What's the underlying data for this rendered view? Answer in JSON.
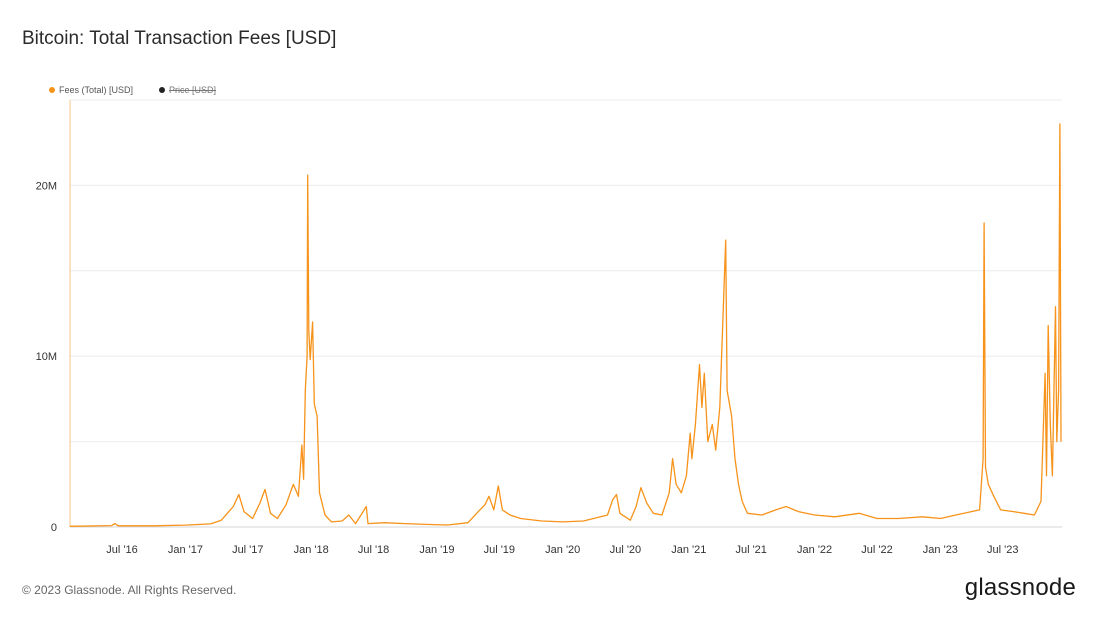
{
  "page": {
    "footer": "© 2023 Glassnode. All Rights Reserved.",
    "brand": "glassnode"
  },
  "legend": [
    {
      "label": "Fees (Total) [USD]",
      "color": "#f7931a",
      "active": true
    },
    {
      "label": "Price [USD]",
      "color": "#222222",
      "active": false
    }
  ],
  "chart_data": {
    "type": "line",
    "title": "Bitcoin: Total Transaction Fees [USD]",
    "xlabel": "",
    "ylabel": "",
    "xlim": [
      "2016-02-01",
      "2023-12-20"
    ],
    "ylim": [
      0,
      25000000
    ],
    "y_ticks": [
      {
        "value": 0,
        "label": "0"
      },
      {
        "value": 10000000,
        "label": "10M"
      },
      {
        "value": 20000000,
        "label": "20M"
      }
    ],
    "x_ticks": [
      {
        "date": "2016-07-01",
        "label": "Jul '16"
      },
      {
        "date": "2017-01-01",
        "label": "Jan '17"
      },
      {
        "date": "2017-07-01",
        "label": "Jul '17"
      },
      {
        "date": "2018-01-01",
        "label": "Jan '18"
      },
      {
        "date": "2018-07-01",
        "label": "Jul '18"
      },
      {
        "date": "2019-01-01",
        "label": "Jan '19"
      },
      {
        "date": "2019-07-01",
        "label": "Jul '19"
      },
      {
        "date": "2020-01-01",
        "label": "Jan '20"
      },
      {
        "date": "2020-07-01",
        "label": "Jul '20"
      },
      {
        "date": "2021-01-01",
        "label": "Jan '21"
      },
      {
        "date": "2021-07-01",
        "label": "Jul '21"
      },
      {
        "date": "2022-01-01",
        "label": "Jan '22"
      },
      {
        "date": "2022-07-01",
        "label": "Jul '22"
      },
      {
        "date": "2023-01-01",
        "label": "Jan '23"
      },
      {
        "date": "2023-07-01",
        "label": "Jul '23"
      }
    ],
    "grid": {
      "horizontal": true,
      "vertical": false
    },
    "legend_position": "top-left",
    "series": [
      {
        "name": "Fees (Total) [USD]",
        "color": "#f7931a",
        "points": [
          [
            "2016-02-01",
            40000
          ],
          [
            "2016-06-01",
            80000
          ],
          [
            "2016-06-10",
            200000
          ],
          [
            "2016-06-20",
            70000
          ],
          [
            "2016-10-01",
            70000
          ],
          [
            "2017-01-01",
            110000
          ],
          [
            "2017-03-15",
            180000
          ],
          [
            "2017-04-15",
            400000
          ],
          [
            "2017-05-20",
            1200000
          ],
          [
            "2017-06-05",
            1900000
          ],
          [
            "2017-06-20",
            900000
          ],
          [
            "2017-07-15",
            500000
          ],
          [
            "2017-08-05",
            1400000
          ],
          [
            "2017-08-20",
            2200000
          ],
          [
            "2017-09-05",
            800000
          ],
          [
            "2017-09-25",
            500000
          ],
          [
            "2017-10-20",
            1300000
          ],
          [
            "2017-11-10",
            2500000
          ],
          [
            "2017-11-25",
            1800000
          ],
          [
            "2017-12-05",
            4800000
          ],
          [
            "2017-12-10",
            2800000
          ],
          [
            "2017-12-15",
            8000000
          ],
          [
            "2017-12-20",
            10000000
          ],
          [
            "2017-12-22",
            20600000
          ],
          [
            "2017-12-25",
            11500000
          ],
          [
            "2017-12-29",
            9800000
          ],
          [
            "2018-01-05",
            12000000
          ],
          [
            "2018-01-10",
            7200000
          ],
          [
            "2018-01-18",
            6500000
          ],
          [
            "2018-01-25",
            2000000
          ],
          [
            "2018-02-10",
            700000
          ],
          [
            "2018-03-01",
            300000
          ],
          [
            "2018-04-01",
            350000
          ],
          [
            "2018-04-20",
            700000
          ],
          [
            "2018-05-10",
            200000
          ],
          [
            "2018-06-10",
            1200000
          ],
          [
            "2018-06-15",
            200000
          ],
          [
            "2018-08-01",
            250000
          ],
          [
            "2018-10-01",
            200000
          ],
          [
            "2018-12-01",
            150000
          ],
          [
            "2019-02-01",
            120000
          ],
          [
            "2019-04-01",
            250000
          ],
          [
            "2019-05-01",
            900000
          ],
          [
            "2019-05-20",
            1300000
          ],
          [
            "2019-06-01",
            1800000
          ],
          [
            "2019-06-15",
            1000000
          ],
          [
            "2019-06-28",
            2400000
          ],
          [
            "2019-07-10",
            1000000
          ],
          [
            "2019-08-01",
            700000
          ],
          [
            "2019-09-01",
            500000
          ],
          [
            "2019-11-01",
            350000
          ],
          [
            "2020-01-01",
            300000
          ],
          [
            "2020-03-01",
            350000
          ],
          [
            "2020-05-10",
            700000
          ],
          [
            "2020-05-25",
            1600000
          ],
          [
            "2020-06-05",
            1900000
          ],
          [
            "2020-06-15",
            800000
          ],
          [
            "2020-07-15",
            400000
          ],
          [
            "2020-08-01",
            1200000
          ],
          [
            "2020-08-15",
            2300000
          ],
          [
            "2020-09-01",
            1400000
          ],
          [
            "2020-09-20",
            800000
          ],
          [
            "2020-10-15",
            700000
          ],
          [
            "2020-11-05",
            2000000
          ],
          [
            "2020-11-15",
            4000000
          ],
          [
            "2020-11-25",
            2500000
          ],
          [
            "2020-12-10",
            2000000
          ],
          [
            "2020-12-25",
            3000000
          ],
          [
            "2021-01-05",
            5500000
          ],
          [
            "2021-01-10",
            4000000
          ],
          [
            "2021-01-20",
            6000000
          ],
          [
            "2021-02-01",
            9500000
          ],
          [
            "2021-02-08",
            7000000
          ],
          [
            "2021-02-15",
            9000000
          ],
          [
            "2021-02-25",
            5000000
          ],
          [
            "2021-03-10",
            6000000
          ],
          [
            "2021-03-20",
            4500000
          ],
          [
            "2021-04-01",
            7000000
          ],
          [
            "2021-04-18",
            16800000
          ],
          [
            "2021-04-22",
            8000000
          ],
          [
            "2021-05-05",
            6500000
          ],
          [
            "2021-05-15",
            4000000
          ],
          [
            "2021-05-25",
            2500000
          ],
          [
            "2021-06-05",
            1500000
          ],
          [
            "2021-06-20",
            800000
          ],
          [
            "2021-08-01",
            700000
          ],
          [
            "2021-09-10",
            1000000
          ],
          [
            "2021-10-10",
            1200000
          ],
          [
            "2021-11-15",
            900000
          ],
          [
            "2022-01-01",
            700000
          ],
          [
            "2022-03-01",
            600000
          ],
          [
            "2022-05-10",
            800000
          ],
          [
            "2022-07-01",
            500000
          ],
          [
            "2022-09-01",
            500000
          ],
          [
            "2022-11-10",
            600000
          ],
          [
            "2023-01-01",
            500000
          ],
          [
            "2023-02-15",
            700000
          ],
          [
            "2023-04-01",
            900000
          ],
          [
            "2023-04-25",
            1000000
          ],
          [
            "2023-05-05",
            4000000
          ],
          [
            "2023-05-08",
            17800000
          ],
          [
            "2023-05-12",
            3500000
          ],
          [
            "2023-05-20",
            2500000
          ],
          [
            "2023-06-05",
            1800000
          ],
          [
            "2023-06-25",
            1000000
          ],
          [
            "2023-08-01",
            900000
          ],
          [
            "2023-09-01",
            800000
          ],
          [
            "2023-10-01",
            700000
          ],
          [
            "2023-10-20",
            1500000
          ],
          [
            "2023-11-01",
            9000000
          ],
          [
            "2023-11-05",
            3000000
          ],
          [
            "2023-11-10",
            11800000
          ],
          [
            "2023-11-16",
            6000000
          ],
          [
            "2023-11-22",
            3000000
          ],
          [
            "2023-12-01",
            12900000
          ],
          [
            "2023-12-05",
            5000000
          ],
          [
            "2023-12-10",
            8000000
          ],
          [
            "2023-12-14",
            23600000
          ],
          [
            "2023-12-17",
            5000000
          ]
        ]
      }
    ]
  }
}
